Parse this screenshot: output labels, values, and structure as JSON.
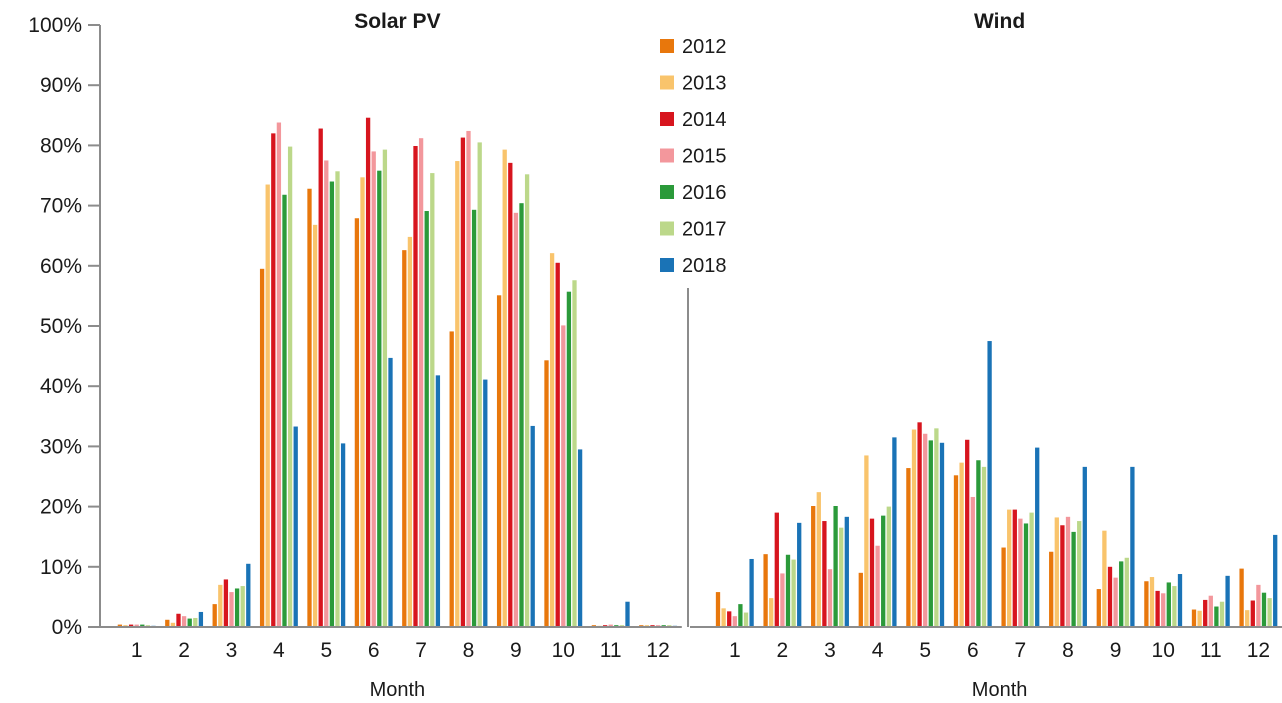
{
  "chart_data": {
    "type": "bar",
    "y_tick_labels": [
      "0%",
      "10%",
      "20%",
      "30%",
      "40%",
      "50%",
      "60%",
      "70%",
      "80%",
      "90%",
      "100%"
    ],
    "ylim": [
      0,
      100
    ],
    "grid": false,
    "legend_position": "top-center",
    "series_names": [
      "2012",
      "2013",
      "2014",
      "2015",
      "2016",
      "2017",
      "2018"
    ],
    "series_colors": [
      "#e8770c",
      "#f9c46c",
      "#d7151e",
      "#f3979c",
      "#2b9a3a",
      "#bcd88a",
      "#1a73b6"
    ],
    "panels": [
      {
        "title": "Solar PV",
        "xlabel": "Month",
        "categories": [
          "1",
          "2",
          "3",
          "4",
          "5",
          "6",
          "7",
          "8",
          "9",
          "10",
          "11",
          "12"
        ],
        "values": [
          [
            0.4,
            0.3,
            0.4,
            0.4,
            0.4,
            0.3,
            0.2
          ],
          [
            1.2,
            0.7,
            2.2,
            1.8,
            1.4,
            1.5,
            2.5
          ],
          [
            3.8,
            7.0,
            7.9,
            5.8,
            6.4,
            6.8,
            10.5
          ],
          [
            59.5,
            73.5,
            82.0,
            83.8,
            71.8,
            79.8,
            33.3
          ],
          [
            72.8,
            66.8,
            82.8,
            77.5,
            74.0,
            75.7,
            30.5
          ],
          [
            67.9,
            74.7,
            84.6,
            79.0,
            75.8,
            79.3,
            44.7
          ],
          [
            62.6,
            64.8,
            79.9,
            81.2,
            69.1,
            75.4,
            41.8
          ],
          [
            49.1,
            77.4,
            81.3,
            82.4,
            69.3,
            80.5,
            41.1
          ],
          [
            55.1,
            79.3,
            77.1,
            68.8,
            70.4,
            75.2,
            33.4
          ],
          [
            44.3,
            62.1,
            60.5,
            50.1,
            55.7,
            57.6,
            29.5
          ],
          [
            0.3,
            0.2,
            0.3,
            0.4,
            0.3,
            0.3,
            4.2
          ],
          [
            0.3,
            0.3,
            0.3,
            0.3,
            0.3,
            0.3,
            0.2
          ]
        ]
      },
      {
        "title": "Wind",
        "xlabel": "Month",
        "categories": [
          "1",
          "2",
          "3",
          "4",
          "5",
          "6",
          "7",
          "8",
          "9",
          "10",
          "11",
          "12"
        ],
        "values": [
          [
            5.8,
            3.1,
            2.6,
            1.8,
            3.8,
            2.4,
            11.3
          ],
          [
            12.1,
            4.8,
            19.0,
            8.9,
            12.0,
            11.2,
            17.3
          ],
          [
            20.1,
            22.4,
            17.6,
            9.6,
            20.1,
            16.5,
            18.3
          ],
          [
            9.0,
            28.5,
            18.0,
            13.5,
            18.5,
            20.0,
            31.5
          ],
          [
            26.4,
            32.8,
            34.0,
            32.1,
            31.0,
            33.0,
            30.6
          ],
          [
            25.2,
            27.3,
            31.1,
            21.6,
            27.7,
            26.6,
            47.5
          ],
          [
            13.2,
            19.5,
            19.5,
            18.0,
            17.2,
            19.0,
            29.8
          ],
          [
            12.5,
            18.2,
            16.9,
            18.3,
            15.8,
            17.6,
            26.6
          ],
          [
            6.3,
            16.0,
            10.0,
            8.2,
            10.9,
            11.5,
            26.6
          ],
          [
            7.6,
            8.3,
            6.0,
            5.6,
            7.4,
            6.8,
            8.8
          ],
          [
            2.9,
            2.7,
            4.5,
            5.2,
            3.4,
            4.2,
            8.5
          ],
          [
            9.7,
            2.8,
            4.4,
            7.0,
            5.7,
            4.8,
            15.3
          ]
        ]
      }
    ]
  }
}
